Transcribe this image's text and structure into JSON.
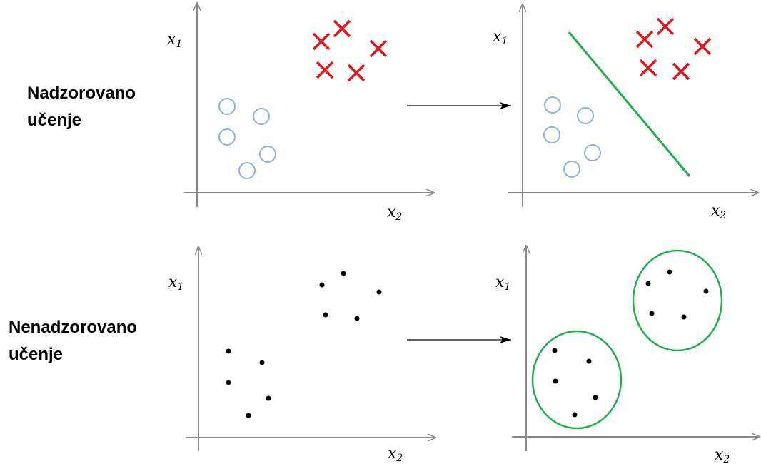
{
  "rows": [
    {
      "label_line1": "Nadzorovano",
      "label_line2": "učenje",
      "kind": "supervised"
    },
    {
      "label_line1": "Nenadzorovano",
      "label_line2": "učenje",
      "kind": "unsupervised"
    }
  ],
  "axes": {
    "y_symbol": "x",
    "y_subscript": "1",
    "x_symbol": "x",
    "x_subscript": "2"
  },
  "colors": {
    "axis": "#8a8a8a",
    "circle_class": "#8fb0dc",
    "cross_class": "#e3141c",
    "boundary": "#1fae4b",
    "cluster": "#1fae4b",
    "point": "#000000",
    "arrow": "#000000"
  },
  "markers": {
    "circle_class_points": [
      "circle",
      "circle",
      "circle",
      "circle",
      "circle"
    ],
    "cross_class_points": [
      "cross",
      "cross",
      "cross",
      "cross",
      "cross"
    ]
  }
}
